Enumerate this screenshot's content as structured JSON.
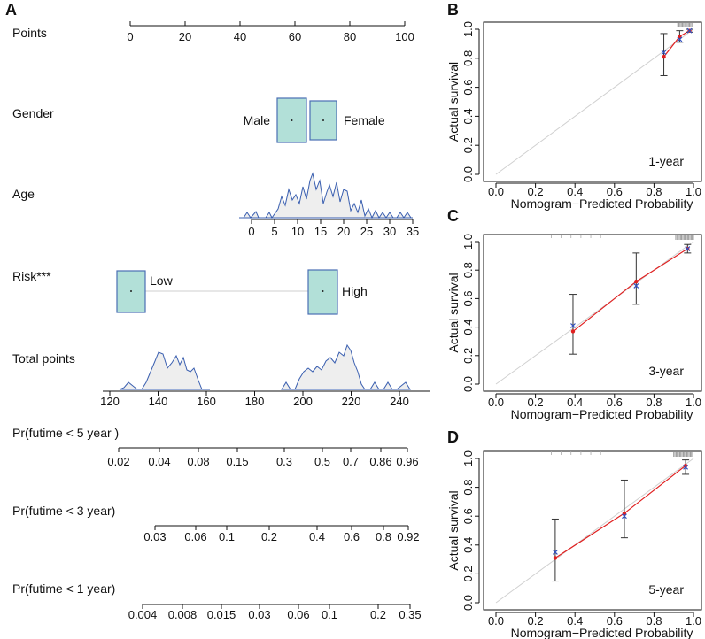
{
  "panels": {
    "A": "A",
    "B": "B",
    "C": "C",
    "D": "D"
  },
  "nomogram": {
    "rows": {
      "points": "Points",
      "gender": "Gender",
      "age": "Age",
      "risk": "Risk***",
      "total": "Total points",
      "pr5": "Pr(futime < 5 year )",
      "pr3": "Pr(futime < 3 year)",
      "pr1": "Pr(futime < 1 year)"
    },
    "points_ticks": [
      "0",
      "20",
      "40",
      "60",
      "80",
      "100"
    ],
    "points_values": [
      0,
      20,
      40,
      60,
      80,
      100
    ],
    "gender": {
      "male": "Male",
      "female": "Female"
    },
    "age_ticks": [
      "0",
      "5",
      "10",
      "15",
      "20",
      "25",
      "30",
      "35"
    ],
    "age_values": [
      0,
      5,
      10,
      15,
      20,
      25,
      30,
      35
    ],
    "risk": {
      "low": "Low",
      "high": "High"
    },
    "total_ticks": [
      "120",
      "140",
      "160",
      "180",
      "200",
      "220",
      "240"
    ],
    "total_values": [
      120,
      140,
      160,
      180,
      200,
      220,
      240
    ],
    "pr5_ticks": [
      "0.02",
      "0.04",
      "0.08",
      "0.15",
      "0.3",
      "0.5",
      "0.7",
      "0.86",
      "0.96"
    ],
    "pr3_ticks": [
      "0.03",
      "0.06",
      "0.1",
      "0.2",
      "0.4",
      "0.6",
      "0.8",
      "0.92"
    ],
    "pr1_ticks": [
      "0.004",
      "0.008",
      "0.015",
      "0.03",
      "0.06",
      "0.1",
      "0.2",
      "0.35"
    ],
    "colors": {
      "box_fill": "#b2e0d8",
      "box_stroke": "#4a6fb5",
      "density_line": "#3a5fb0",
      "density_fill": "#eeeeee"
    }
  },
  "chart_data": [
    {
      "type": "scatter",
      "panel": "B",
      "title": "",
      "period": "1-year",
      "xlabel": "Nomogram−Predicted Probability",
      "ylabel": "Actual survival",
      "xlim": [
        0,
        1
      ],
      "ylim": [
        0,
        1
      ],
      "ticks": [
        "0.0",
        "0.2",
        "0.4",
        "0.6",
        "0.8",
        "1.0"
      ],
      "points": [
        {
          "x": 0.85,
          "y": 0.81,
          "lo": 0.68,
          "hi": 0.97,
          "bias_corrected": 0.84
        },
        {
          "x": 0.93,
          "y": 0.95,
          "lo": 0.91,
          "hi": 0.99,
          "bias_corrected": 0.93
        },
        {
          "x": 0.98,
          "y": 0.99,
          "lo": 0.98,
          "hi": 1.0,
          "bias_corrected": 0.99
        }
      ]
    },
    {
      "type": "scatter",
      "panel": "C",
      "title": "",
      "period": "3-year",
      "xlabel": "Nomogram−Predicted Probability",
      "ylabel": "Actual survival",
      "xlim": [
        0,
        1
      ],
      "ylim": [
        0,
        1
      ],
      "ticks": [
        "0.0",
        "0.2",
        "0.4",
        "0.6",
        "0.8",
        "1.0"
      ],
      "points": [
        {
          "x": 0.39,
          "y": 0.37,
          "lo": 0.21,
          "hi": 0.63,
          "bias_corrected": 0.41
        },
        {
          "x": 0.71,
          "y": 0.72,
          "lo": 0.56,
          "hi": 0.92,
          "bias_corrected": 0.69
        },
        {
          "x": 0.97,
          "y": 0.95,
          "lo": 0.92,
          "hi": 0.98,
          "bias_corrected": 0.95
        }
      ]
    },
    {
      "type": "scatter",
      "panel": "D",
      "title": "",
      "period": "5-year",
      "xlabel": "Nomogram−Predicted Probability",
      "ylabel": "Actual survival",
      "xlim": [
        0,
        1
      ],
      "ylim": [
        0,
        1
      ],
      "ticks": [
        "0.0",
        "0.2",
        "0.4",
        "0.6",
        "0.8",
        "1.0"
      ],
      "points": [
        {
          "x": 0.3,
          "y": 0.31,
          "lo": 0.15,
          "hi": 0.58,
          "bias_corrected": 0.35
        },
        {
          "x": 0.65,
          "y": 0.62,
          "lo": 0.45,
          "hi": 0.85,
          "bias_corrected": 0.6
        },
        {
          "x": 0.96,
          "y": 0.95,
          "lo": 0.89,
          "hi": 0.99,
          "bias_corrected": 0.94
        }
      ]
    }
  ]
}
